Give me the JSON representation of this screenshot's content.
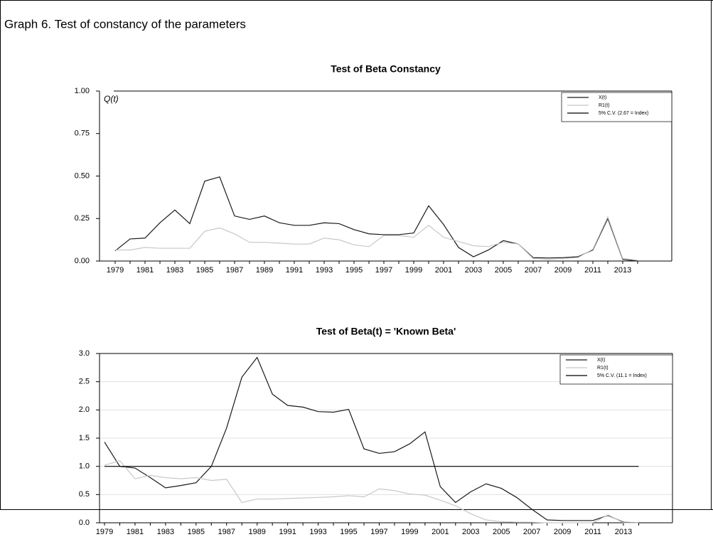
{
  "header": {
    "title": "Graph 6. Test of constancy of the parameters"
  },
  "chart_data": [
    {
      "type": "line",
      "title": "Test of Beta Constancy",
      "annotation": "Q(t)",
      "categories": [
        "1979",
        null,
        "1981",
        null,
        "1983",
        null,
        "1985",
        null,
        "1987",
        null,
        "1989",
        null,
        "1991",
        null,
        "1993",
        null,
        "1995",
        null,
        "1997",
        null,
        "1999",
        null,
        "2001",
        null,
        "2003",
        null,
        "2005",
        null,
        "2007",
        null,
        "2009",
        null,
        "2011",
        null,
        "2013",
        null
      ],
      "series": [
        {
          "name": "X(t)",
          "color": "#1a1a1a",
          "values": [
            0.06,
            0.13,
            0.135,
            0.225,
            0.3,
            0.22,
            0.47,
            0.495,
            0.265,
            0.245,
            0.265,
            0.225,
            0.21,
            0.21,
            0.225,
            0.22,
            0.185,
            0.16,
            0.155,
            0.155,
            0.165,
            0.325,
            0.215,
            0.08,
            0.025,
            0.065,
            0.12,
            0.1,
            0.02,
            0.018,
            0.02,
            0.025,
            0.065,
            0.25,
            0.01,
            0.0
          ]
        },
        {
          "name": "R1(t)",
          "color": "#c8c8c8",
          "values": [
            0.065,
            0.065,
            0.08,
            0.075,
            0.075,
            0.075,
            0.175,
            0.195,
            0.16,
            0.11,
            0.11,
            0.105,
            0.1,
            0.1,
            0.135,
            0.125,
            0.095,
            0.085,
            0.15,
            0.15,
            0.14,
            0.21,
            0.14,
            0.115,
            0.09,
            0.085,
            0.11,
            0.1,
            0.015,
            0.01,
            0.015,
            0.02,
            0.07,
            0.26,
            0.015,
            0.005
          ]
        },
        {
          "name": "5% C.V. (2.67 = Index)",
          "color": "#000000",
          "values": [
            null,
            null,
            null,
            null,
            null,
            null,
            null,
            null,
            null,
            null,
            null,
            null,
            null,
            null,
            null,
            null,
            null,
            null,
            null,
            null,
            null,
            null,
            null,
            null,
            null,
            null,
            null,
            null,
            null,
            null,
            null,
            null,
            null,
            null,
            null,
            null
          ]
        }
      ],
      "ylim": [
        0,
        1
      ],
      "yticks": [
        {
          "value": 0,
          "label": "0.00"
        },
        {
          "value": 0.25,
          "label": "0.25"
        },
        {
          "value": 0.5,
          "label": "0.50"
        },
        {
          "value": 0.75,
          "label": "0.75"
        },
        {
          "value": 1,
          "label": "1.00"
        }
      ],
      "grid": false,
      "legend": "top-right"
    },
    {
      "type": "line",
      "title": "Test of Beta(t) = 'Known Beta'",
      "categories": [
        "1979",
        null,
        "1981",
        null,
        "1983",
        null,
        "1985",
        null,
        "1987",
        null,
        "1989",
        null,
        "1991",
        null,
        "1993",
        null,
        "1995",
        null,
        "1997",
        null,
        "1999",
        null,
        "2001",
        null,
        "2003",
        null,
        "2005",
        null,
        "2007",
        null,
        "2009",
        null,
        "2011",
        null,
        "2013",
        null
      ],
      "series": [
        {
          "name": "X(t)",
          "color": "#1a1a1a",
          "values": [
            1.43,
            1.0,
            0.97,
            0.8,
            0.62,
            0.66,
            0.71,
            1.0,
            1.68,
            2.58,
            2.93,
            2.28,
            2.08,
            2.05,
            1.97,
            1.96,
            2.01,
            1.31,
            1.23,
            1.26,
            1.4,
            1.61,
            0.64,
            0.36,
            0.55,
            0.69,
            0.61,
            0.45,
            0.24,
            0.05,
            0.04,
            0.04,
            0.04,
            0.13,
            0.01,
            0.0
          ]
        },
        {
          "name": "R1(t)",
          "color": "#c8c8c8",
          "values": [
            1.02,
            1.1,
            0.78,
            0.84,
            0.8,
            0.78,
            0.8,
            0.75,
            0.77,
            0.36,
            0.42,
            0.42,
            0.43,
            0.44,
            0.45,
            0.46,
            0.48,
            0.46,
            0.6,
            0.57,
            0.51,
            0.49,
            0.4,
            0.3,
            0.16,
            0.05,
            0.02,
            0.01,
            0.01,
            0.0,
            0.0,
            0.0,
            0.0,
            0.14,
            0.0,
            0.0
          ]
        },
        {
          "name": "5% C.V. (11.1 = Index)",
          "color": "#000000",
          "values": [
            1,
            1,
            1,
            1,
            1,
            1,
            1,
            1,
            1,
            1,
            1,
            1,
            1,
            1,
            1,
            1,
            1,
            1,
            1,
            1,
            1,
            1,
            1,
            1,
            1,
            1,
            1,
            1,
            1,
            1,
            1,
            1,
            1,
            1,
            1,
            1
          ]
        }
      ],
      "ylim": [
        0,
        3
      ],
      "yticks": [
        {
          "value": 0,
          "label": "0.0"
        },
        0.5,
        {
          "value": 1,
          "label": "1.0"
        },
        1.5,
        {
          "value": 2,
          "label": "2.0"
        },
        2.5,
        {
          "value": 3,
          "label": "3.0"
        }
      ],
      "grid": true,
      "legend": "top-right"
    }
  ]
}
